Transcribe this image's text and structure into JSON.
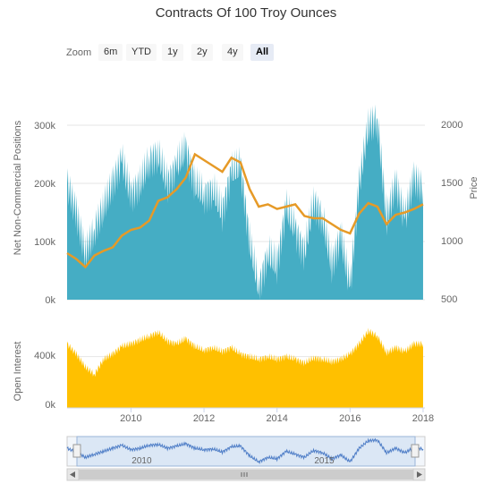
{
  "title": "Contracts Of 100 Troy Ounces",
  "zoom": {
    "label": "Zoom",
    "buttons": [
      "6m",
      "YTD",
      "1y",
      "2y",
      "4y",
      "All"
    ],
    "active": "All"
  },
  "colors": {
    "positions": "#45adc4",
    "price": "#e69a27",
    "open_interest": "#ffc000",
    "navigator_bg": "#dbe7f5",
    "navigator_line": "#4f7ec7",
    "grid": "#e6e6e6"
  },
  "chart_data": [
    {
      "type": "area",
      "name": "positions-and-price",
      "y_left": {
        "label": "Net Non-Commercial Positions",
        "ticks": [
          "0k",
          "100k",
          "200k",
          "300k"
        ],
        "range": [
          0,
          300000
        ]
      },
      "y_right": {
        "label": "Price",
        "ticks": [
          "500",
          "1000",
          "1500",
          "2000"
        ],
        "range": [
          500,
          2000
        ]
      },
      "x_range": [
        2008.25,
        2018.05
      ],
      "series": [
        {
          "kind": "area",
          "axis": "left",
          "x": [
            2008.25,
            2008.5,
            2008.75,
            2009.0,
            2009.25,
            2009.5,
            2009.75,
            2010.0,
            2010.25,
            2010.5,
            2010.75,
            2011.0,
            2011.25,
            2011.5,
            2011.75,
            2012.0,
            2012.25,
            2012.5,
            2012.75,
            2013.0,
            2013.25,
            2013.5,
            2013.75,
            2014.0,
            2014.25,
            2014.5,
            2014.75,
            2015.0,
            2015.25,
            2015.5,
            2015.75,
            2016.0,
            2016.25,
            2016.5,
            2016.75,
            2017.0,
            2017.25,
            2017.5,
            2017.75,
            2018.0
          ],
          "values": [
            200000,
            150000,
            80000,
            120000,
            160000,
            200000,
            240000,
            180000,
            200000,
            240000,
            250000,
            200000,
            230000,
            260000,
            200000,
            180000,
            190000,
            150000,
            220000,
            230000,
            100000,
            20000,
            80000,
            60000,
            160000,
            120000,
            80000,
            170000,
            140000,
            60000,
            110000,
            20000,
            200000,
            300000,
            310000,
            140000,
            200000,
            140000,
            210000,
            190000
          ]
        },
        {
          "kind": "line",
          "axis": "right",
          "x": [
            2008.25,
            2008.5,
            2008.75,
            2009.0,
            2009.25,
            2009.5,
            2009.75,
            2010.0,
            2010.25,
            2010.5,
            2010.75,
            2011.0,
            2011.25,
            2011.5,
            2011.75,
            2012.0,
            2012.25,
            2012.5,
            2012.75,
            2013.0,
            2013.25,
            2013.5,
            2013.75,
            2014.0,
            2014.25,
            2014.5,
            2014.75,
            2015.0,
            2015.25,
            2015.5,
            2015.75,
            2016.0,
            2016.25,
            2016.5,
            2016.75,
            2017.0,
            2017.25,
            2017.5,
            2017.75,
            2018.0
          ],
          "values": [
            900,
            850,
            780,
            880,
            920,
            950,
            1050,
            1100,
            1120,
            1180,
            1350,
            1380,
            1450,
            1550,
            1750,
            1700,
            1650,
            1600,
            1720,
            1680,
            1450,
            1300,
            1320,
            1280,
            1300,
            1320,
            1220,
            1200,
            1200,
            1150,
            1100,
            1070,
            1240,
            1330,
            1300,
            1150,
            1230,
            1250,
            1280,
            1320
          ]
        }
      ]
    },
    {
      "type": "area",
      "name": "open-interest",
      "y": {
        "label": "Open Interest",
        "ticks": [
          "0k",
          "400k"
        ],
        "range": [
          0,
          600000
        ]
      },
      "x_ticks": [
        "2010",
        "2012",
        "2014",
        "2016",
        "2018"
      ],
      "x_tick_values": [
        2010,
        2012,
        2014,
        2016,
        2018
      ],
      "x_range": [
        2008.25,
        2018.05
      ],
      "series": [
        {
          "kind": "area",
          "x": [
            2008.25,
            2008.5,
            2008.75,
            2009.0,
            2009.25,
            2009.5,
            2009.75,
            2010.0,
            2010.25,
            2010.5,
            2010.75,
            2011.0,
            2011.25,
            2011.5,
            2011.75,
            2012.0,
            2012.25,
            2012.5,
            2012.75,
            2013.0,
            2013.25,
            2013.5,
            2013.75,
            2014.0,
            2014.25,
            2014.5,
            2014.75,
            2015.0,
            2015.25,
            2015.5,
            2015.75,
            2016.0,
            2016.25,
            2016.5,
            2016.75,
            2017.0,
            2017.25,
            2017.5,
            2017.75,
            2018.0
          ],
          "values": [
            500000,
            420000,
            320000,
            260000,
            380000,
            420000,
            480000,
            500000,
            530000,
            560000,
            590000,
            520000,
            500000,
            540000,
            480000,
            450000,
            470000,
            440000,
            470000,
            420000,
            400000,
            380000,
            400000,
            380000,
            400000,
            380000,
            350000,
            390000,
            380000,
            360000,
            380000,
            420000,
            500000,
            600000,
            560000,
            430000,
            470000,
            440000,
            500000,
            500000
          ]
        }
      ]
    },
    {
      "type": "line",
      "name": "navigator",
      "x_ticks": [
        "2010",
        "2015"
      ],
      "x_tick_values": [
        2010,
        2015
      ],
      "x_range": [
        2008.25,
        2018.05
      ],
      "series": [
        {
          "kind": "line",
          "x": [
            2008.25,
            2008.5,
            2008.75,
            2009.0,
            2009.25,
            2009.5,
            2009.75,
            2010.0,
            2010.25,
            2010.5,
            2010.75,
            2011.0,
            2011.25,
            2011.5,
            2011.75,
            2012.0,
            2012.25,
            2012.5,
            2012.75,
            2013.0,
            2013.25,
            2013.5,
            2013.75,
            2014.0,
            2014.25,
            2014.5,
            2014.75,
            2015.0,
            2015.25,
            2015.5,
            2015.75,
            2016.0,
            2016.25,
            2016.5,
            2016.75,
            2017.0,
            2017.25,
            2017.5,
            2017.75,
            2018.0
          ],
          "values": [
            200000,
            150000,
            80000,
            120000,
            160000,
            200000,
            240000,
            180000,
            200000,
            240000,
            250000,
            200000,
            230000,
            260000,
            200000,
            180000,
            190000,
            150000,
            220000,
            230000,
            100000,
            20000,
            80000,
            60000,
            160000,
            120000,
            80000,
            170000,
            140000,
            60000,
            110000,
            20000,
            200000,
            300000,
            310000,
            140000,
            200000,
            140000,
            210000,
            190000
          ]
        }
      ]
    }
  ]
}
